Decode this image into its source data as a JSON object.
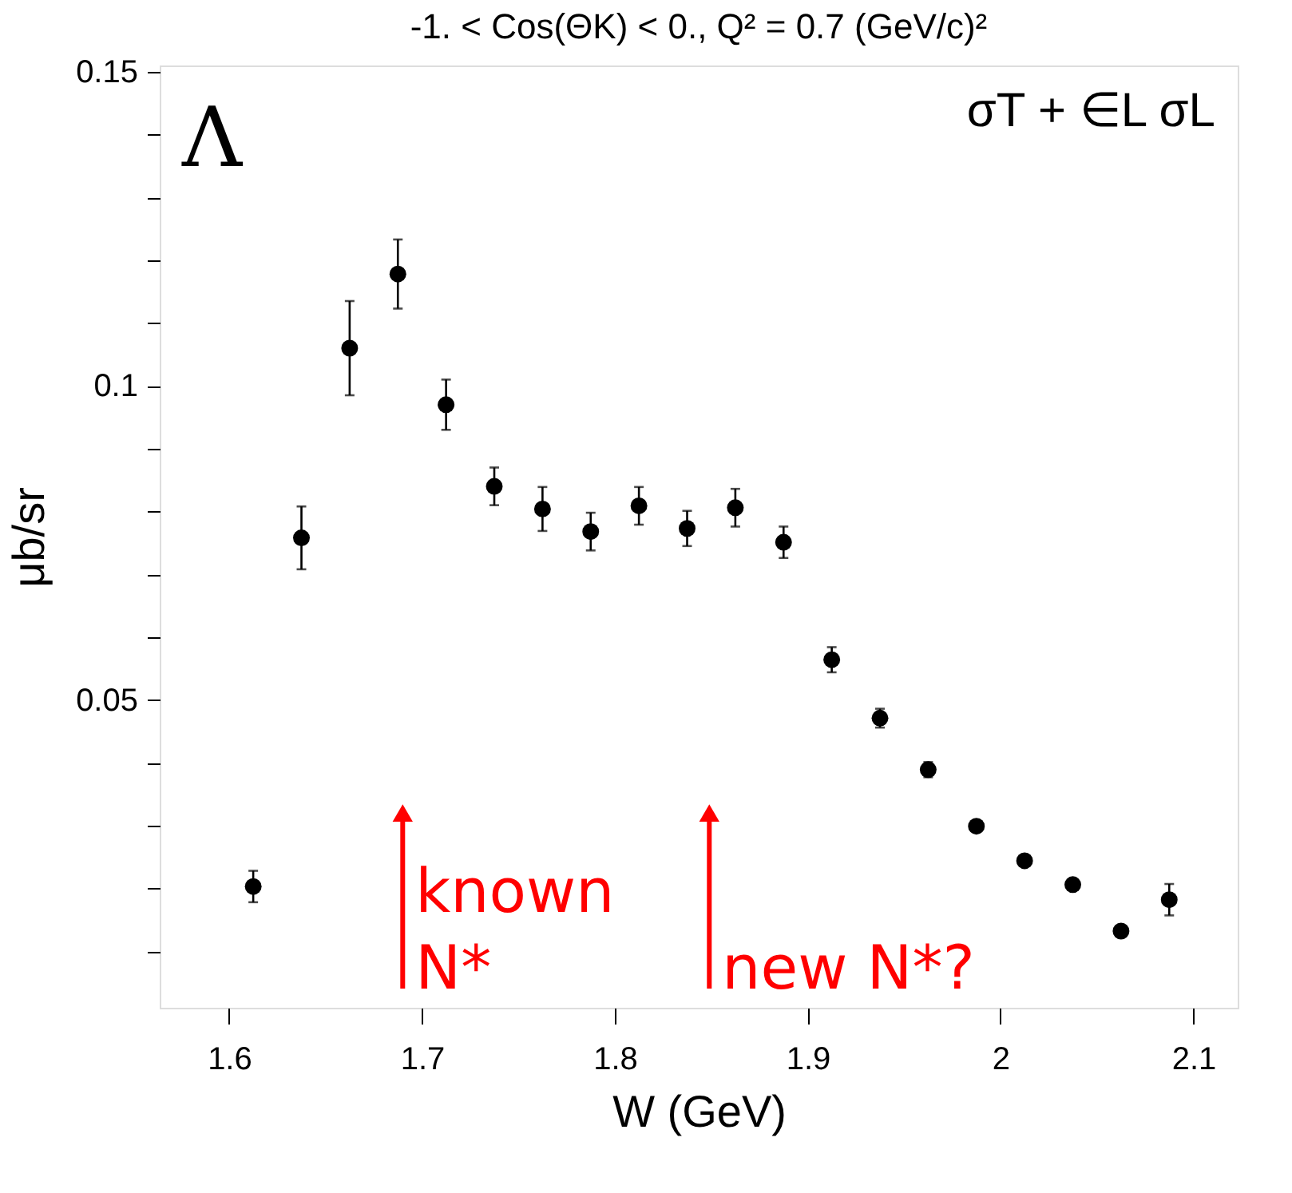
{
  "chart_data": {
    "type": "scatter",
    "title": "-1. < Cos(ΘK) < 0.,  Q² = 0.7 (GeV/c)²",
    "xlabel": "W (GeV)",
    "ylabel": "μb/sr",
    "x": [
      1.6125,
      1.6375,
      1.6625,
      1.6875,
      1.7125,
      1.7375,
      1.7625,
      1.7875,
      1.8125,
      1.8375,
      1.8625,
      1.8875,
      1.9125,
      1.9375,
      1.9625,
      1.9875,
      2.0125,
      2.0375,
      2.0625,
      2.0875
    ],
    "series": [
      {
        "color": "#000000",
        "values": [
          0.0203,
          0.0758,
          0.106,
          0.1178,
          0.097,
          0.084,
          0.0804,
          0.0768,
          0.0809,
          0.0773,
          0.0806,
          0.0751,
          0.0564,
          0.0471,
          0.0389,
          0.0299,
          0.0244,
          0.0206,
          0.0132,
          0.0182
        ],
        "errors": [
          0.0025,
          0.005,
          0.0075,
          0.0055,
          0.004,
          0.003,
          0.0035,
          0.003,
          0.003,
          0.0028,
          0.003,
          0.0025,
          0.002,
          0.0015,
          0.0012,
          null,
          null,
          null,
          null,
          0.0025
        ]
      }
    ],
    "marker": "circle",
    "grid": false,
    "xlim": [
      1.564,
      2.123
    ],
    "xticks": [
      1.6,
      1.7,
      1.8,
      1.9,
      {
        "value": 2.0,
        "label": "2"
      },
      2.1
    ],
    "ylim": [
      0.001,
      0.151
    ],
    "yticks": [
      {
        "value": 0.01,
        "label": null
      },
      {
        "value": 0.02,
        "label": null
      },
      {
        "value": 0.03,
        "label": null
      },
      {
        "value": 0.04,
        "label": null
      },
      0.05,
      {
        "value": 0.06,
        "label": null
      },
      {
        "value": 0.07,
        "label": null
      },
      {
        "value": 0.08,
        "label": null
      },
      {
        "value": 0.09,
        "label": null
      },
      0.1,
      {
        "value": 0.11,
        "label": null
      },
      {
        "value": 0.12,
        "label": null
      },
      {
        "value": 0.13,
        "label": null
      },
      {
        "value": 0.14,
        "label": null
      },
      0.15
    ],
    "annotations": [
      "Λ",
      "σT + ∈L σL",
      {
        "text": "known\nN*",
        "x": 1.69,
        "y": 0.032
      },
      {
        "text": "new N*?",
        "x": 1.849,
        "y": 0.032
      }
    ]
  }
}
